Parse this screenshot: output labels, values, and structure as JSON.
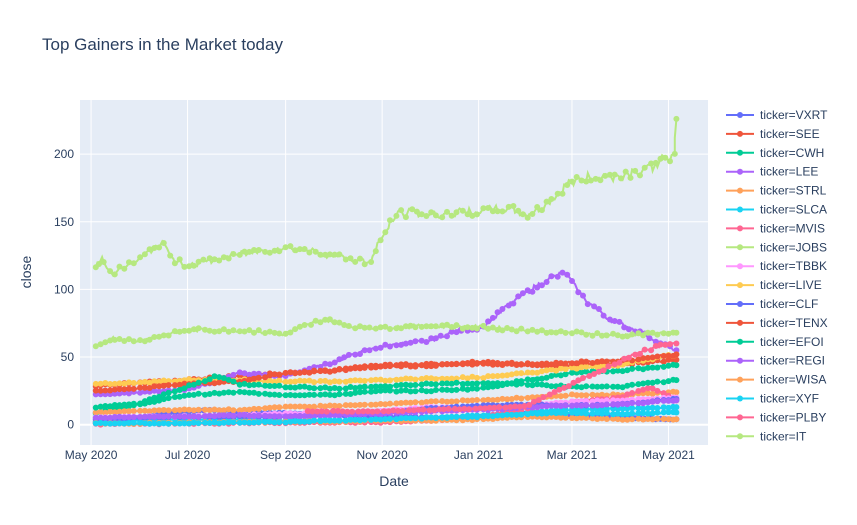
{
  "chart_data": {
    "type": "line",
    "title": "Top Gainers in the Market today",
    "xlabel": "Date",
    "ylabel": "close",
    "x_ticks": [
      "May 2020",
      "Jul 2020",
      "Sep 2020",
      "Nov 2020",
      "Jan 2021",
      "Mar 2021",
      "May 2021"
    ],
    "y_ticks": [
      0,
      50,
      100,
      150,
      200
    ],
    "xlim": [
      "2020-04-24",
      "2021-05-26"
    ],
    "ylim": [
      -15,
      240
    ],
    "grid": true,
    "background": "#E5ECF6",
    "legend_position": "right",
    "markers": true,
    "series": [
      {
        "name": "ticker=VXRT",
        "color": "#636EFA",
        "points": [
          [
            "2020-05-04",
            1.5
          ],
          [
            "2020-06-01",
            5
          ],
          [
            "2020-06-20",
            9
          ],
          [
            "2020-07-15",
            11
          ],
          [
            "2020-08-10",
            9
          ],
          [
            "2020-09-15",
            8
          ],
          [
            "2020-10-15",
            7
          ],
          [
            "2020-11-15",
            6
          ],
          [
            "2020-12-15",
            5
          ],
          [
            "2021-01-15",
            7
          ],
          [
            "2021-02-10",
            9
          ],
          [
            "2021-03-05",
            7
          ],
          [
            "2021-04-01",
            5
          ],
          [
            "2021-05-06",
            4
          ]
        ]
      },
      {
        "name": "ticker=SEE",
        "color": "#EF553B",
        "points": [
          [
            "2020-05-04",
            29
          ],
          [
            "2020-06-01",
            31
          ],
          [
            "2020-07-01",
            33
          ],
          [
            "2020-08-03",
            36
          ],
          [
            "2020-09-01",
            38
          ],
          [
            "2020-10-01",
            40
          ],
          [
            "2020-11-02",
            44
          ],
          [
            "2020-12-01",
            45
          ],
          [
            "2021-01-04",
            46
          ],
          [
            "2021-02-01",
            45
          ],
          [
            "2021-03-01",
            44
          ],
          [
            "2021-04-01",
            45
          ],
          [
            "2021-05-06",
            48
          ]
        ]
      },
      {
        "name": "ticker=CWH",
        "color": "#00CC96",
        "points": [
          [
            "2020-05-04",
            9
          ],
          [
            "2020-06-01",
            15
          ],
          [
            "2020-07-01",
            22
          ],
          [
            "2020-08-03",
            24
          ],
          [
            "2020-09-01",
            22
          ],
          [
            "2020-10-01",
            22
          ],
          [
            "2020-11-02",
            25
          ],
          [
            "2020-12-01",
            25
          ],
          [
            "2021-01-04",
            27
          ],
          [
            "2021-02-01",
            33
          ],
          [
            "2021-03-01",
            38
          ],
          [
            "2021-04-01",
            40
          ],
          [
            "2021-05-06",
            44
          ]
        ]
      },
      {
        "name": "ticker=LEE",
        "color": "#AB63FA",
        "points": [
          [
            "2020-05-04",
            22
          ],
          [
            "2020-06-01",
            24
          ],
          [
            "2020-07-01",
            26
          ],
          [
            "2020-08-03",
            38
          ],
          [
            "2020-09-01",
            36
          ],
          [
            "2020-10-01",
            46
          ],
          [
            "2020-10-15",
            52
          ],
          [
            "2020-11-02",
            58
          ],
          [
            "2020-12-01",
            62
          ],
          [
            "2020-12-20",
            70
          ],
          [
            "2021-01-04",
            72
          ],
          [
            "2021-01-20",
            88
          ],
          [
            "2021-02-01",
            98
          ],
          [
            "2021-02-15",
            108
          ],
          [
            "2021-02-25",
            112
          ],
          [
            "2021-03-10",
            92
          ],
          [
            "2021-03-25",
            78
          ],
          [
            "2021-04-10",
            70
          ],
          [
            "2021-05-06",
            55
          ]
        ]
      },
      {
        "name": "ticker=STRL",
        "color": "#FFA15A",
        "points": [
          [
            "2020-05-04",
            9
          ],
          [
            "2020-06-01",
            10
          ],
          [
            "2020-07-01",
            11
          ],
          [
            "2020-08-03",
            11
          ],
          [
            "2020-09-01",
            13
          ],
          [
            "2020-10-01",
            14
          ],
          [
            "2020-11-02",
            15
          ],
          [
            "2020-12-01",
            17
          ],
          [
            "2021-01-04",
            18
          ],
          [
            "2021-02-01",
            20
          ],
          [
            "2021-03-01",
            22
          ],
          [
            "2021-04-01",
            22
          ],
          [
            "2021-05-06",
            24
          ]
        ]
      },
      {
        "name": "ticker=SLCA",
        "color": "#19D3F3",
        "points": [
          [
            "2020-05-04",
            2
          ],
          [
            "2020-06-01",
            3
          ],
          [
            "2020-07-01",
            4
          ],
          [
            "2020-08-03",
            4
          ],
          [
            "2020-09-01",
            3
          ],
          [
            "2020-10-01",
            3
          ],
          [
            "2020-11-02",
            4
          ],
          [
            "2020-12-01",
            5
          ],
          [
            "2021-01-04",
            7
          ],
          [
            "2021-02-01",
            9
          ],
          [
            "2021-03-01",
            11
          ],
          [
            "2021-04-01",
            12
          ],
          [
            "2021-05-06",
            13
          ]
        ]
      },
      {
        "name": "ticker=MVIS",
        "color": "#FF6692",
        "points": [
          [
            "2020-05-04",
            0.4
          ],
          [
            "2020-06-01",
            0.6
          ],
          [
            "2020-07-01",
            0.8
          ],
          [
            "2020-08-03",
            1.2
          ],
          [
            "2020-09-01",
            1.5
          ],
          [
            "2020-10-01",
            1.6
          ],
          [
            "2020-11-02",
            1.8
          ],
          [
            "2020-12-01",
            3
          ],
          [
            "2021-01-04",
            6
          ],
          [
            "2021-02-01",
            12
          ],
          [
            "2021-03-01",
            17
          ],
          [
            "2021-04-01",
            20
          ],
          [
            "2021-04-20",
            28
          ],
          [
            "2021-05-06",
            18
          ]
        ]
      },
      {
        "name": "ticker=JOBS",
        "color": "#B6E880",
        "points": [
          [
            "2020-05-04",
            57
          ],
          [
            "2020-05-15",
            64
          ],
          [
            "2020-06-01",
            62
          ],
          [
            "2020-07-01",
            70
          ],
          [
            "2020-08-03",
            70
          ],
          [
            "2020-09-01",
            67
          ],
          [
            "2020-09-25",
            78
          ],
          [
            "2020-10-15",
            72
          ],
          [
            "2020-11-02",
            72
          ],
          [
            "2020-12-01",
            73
          ],
          [
            "2021-01-04",
            72
          ],
          [
            "2021-02-01",
            70
          ],
          [
            "2021-03-01",
            68
          ],
          [
            "2021-04-01",
            66
          ],
          [
            "2021-05-06",
            68
          ]
        ]
      },
      {
        "name": "ticker=TBBK",
        "color": "#FF97FF",
        "points": [
          [
            "2020-05-04",
            5
          ],
          [
            "2020-06-01",
            6
          ],
          [
            "2020-07-01",
            6
          ],
          [
            "2020-08-03",
            7
          ],
          [
            "2020-09-01",
            8
          ],
          [
            "2020-10-01",
            8
          ],
          [
            "2020-11-02",
            10
          ],
          [
            "2020-12-01",
            13
          ],
          [
            "2021-01-04",
            13
          ],
          [
            "2021-02-01",
            14
          ],
          [
            "2021-03-01",
            17
          ],
          [
            "2021-04-01",
            18
          ],
          [
            "2021-05-06",
            20
          ]
        ]
      },
      {
        "name": "ticker=LIVE",
        "color": "#FECB52",
        "points": [
          [
            "2020-05-04",
            30
          ],
          [
            "2020-06-01",
            31
          ],
          [
            "2020-07-01",
            33
          ],
          [
            "2020-08-03",
            33
          ],
          [
            "2020-09-01",
            32
          ],
          [
            "2020-10-01",
            32
          ],
          [
            "2020-11-02",
            33
          ],
          [
            "2020-12-01",
            34
          ],
          [
            "2021-01-04",
            35
          ],
          [
            "2021-02-01",
            38
          ],
          [
            "2021-03-01",
            42
          ],
          [
            "2021-04-01",
            44
          ],
          [
            "2021-05-06",
            52
          ]
        ]
      },
      {
        "name": "ticker=CLF",
        "color": "#636EFA",
        "points": [
          [
            "2020-05-04",
            4
          ],
          [
            "2020-06-01",
            5
          ],
          [
            "2020-07-01",
            6
          ],
          [
            "2020-08-03",
            6
          ],
          [
            "2020-09-01",
            6
          ],
          [
            "2020-10-01",
            7
          ],
          [
            "2020-11-02",
            8
          ],
          [
            "2020-12-01",
            12
          ],
          [
            "2021-01-04",
            14
          ],
          [
            "2021-02-01",
            15
          ],
          [
            "2021-03-01",
            14
          ],
          [
            "2021-04-01",
            15
          ],
          [
            "2021-05-06",
            19
          ]
        ]
      },
      {
        "name": "ticker=TENX",
        "color": "#EF553B",
        "points": [
          [
            "2020-05-04",
            25
          ],
          [
            "2020-06-01",
            27
          ],
          [
            "2020-07-01",
            30
          ],
          [
            "2020-08-03",
            32
          ],
          [
            "2020-09-01",
            38
          ],
          [
            "2020-10-01",
            40
          ],
          [
            "2020-11-02",
            43
          ],
          [
            "2020-12-01",
            44
          ],
          [
            "2021-01-04",
            45
          ],
          [
            "2021-02-01",
            44
          ],
          [
            "2021-03-01",
            46
          ],
          [
            "2021-04-01",
            47
          ],
          [
            "2021-05-06",
            52
          ]
        ]
      },
      {
        "name": "ticker=EFOI",
        "color": "#00CC96",
        "points": [
          [
            "2020-05-04",
            13
          ],
          [
            "2020-06-01",
            16
          ],
          [
            "2020-07-01",
            28
          ],
          [
            "2020-07-20",
            36
          ],
          [
            "2020-08-03",
            30
          ],
          [
            "2020-09-01",
            28
          ],
          [
            "2020-10-01",
            27
          ],
          [
            "2020-11-02",
            28
          ],
          [
            "2020-12-01",
            30
          ],
          [
            "2021-01-04",
            31
          ],
          [
            "2021-02-01",
            30
          ],
          [
            "2021-03-01",
            28
          ],
          [
            "2021-04-01",
            28
          ],
          [
            "2021-05-06",
            33
          ]
        ]
      },
      {
        "name": "ticker=REGI",
        "color": "#AB63FA",
        "points": [
          [
            "2020-05-04",
            5
          ],
          [
            "2020-06-01",
            6
          ],
          [
            "2020-07-01",
            6
          ],
          [
            "2020-08-03",
            7
          ],
          [
            "2020-09-01",
            6
          ],
          [
            "2020-10-01",
            7
          ],
          [
            "2020-11-02",
            8
          ],
          [
            "2020-12-01",
            10
          ],
          [
            "2021-01-04",
            11
          ],
          [
            "2021-02-01",
            13
          ],
          [
            "2021-03-01",
            14
          ],
          [
            "2021-04-01",
            15
          ],
          [
            "2021-05-06",
            18
          ]
        ]
      },
      {
        "name": "ticker=WISA",
        "color": "#FFA15A",
        "points": [
          [
            "2020-05-04",
            1
          ],
          [
            "2020-06-01",
            1
          ],
          [
            "2020-07-01",
            1.5
          ],
          [
            "2020-08-03",
            2
          ],
          [
            "2020-09-01",
            2
          ],
          [
            "2020-10-01",
            2.5
          ],
          [
            "2020-11-02",
            3
          ],
          [
            "2020-12-01",
            3
          ],
          [
            "2021-01-04",
            4
          ],
          [
            "2021-02-01",
            6
          ],
          [
            "2021-03-01",
            5
          ],
          [
            "2021-04-01",
            4
          ],
          [
            "2021-05-06",
            4
          ]
        ]
      },
      {
        "name": "ticker=XYF",
        "color": "#19D3F3",
        "points": [
          [
            "2020-05-04",
            1
          ],
          [
            "2020-06-01",
            1
          ],
          [
            "2020-07-01",
            1
          ],
          [
            "2020-08-03",
            1.5
          ],
          [
            "2020-09-01",
            2
          ],
          [
            "2020-10-01",
            3
          ],
          [
            "2020-11-02",
            4
          ],
          [
            "2020-12-01",
            5
          ],
          [
            "2021-01-04",
            6
          ],
          [
            "2021-02-01",
            8
          ],
          [
            "2021-03-01",
            9
          ],
          [
            "2021-04-01",
            8
          ],
          [
            "2021-05-06",
            9
          ]
        ]
      },
      {
        "name": "ticker=PLBY",
        "color": "#FF6692",
        "points": [
          [
            "2020-09-15",
            10
          ],
          [
            "2020-10-01",
            10
          ],
          [
            "2020-11-02",
            10
          ],
          [
            "2020-12-01",
            11
          ],
          [
            "2021-01-04",
            12
          ],
          [
            "2021-02-01",
            14
          ],
          [
            "2021-02-15",
            22
          ],
          [
            "2021-03-01",
            30
          ],
          [
            "2021-03-20",
            40
          ],
          [
            "2021-04-10",
            52
          ],
          [
            "2021-04-25",
            58
          ],
          [
            "2021-05-06",
            60
          ]
        ]
      },
      {
        "name": "ticker=IT",
        "color": "#B6E880",
        "points": [
          [
            "2020-05-04",
            116
          ],
          [
            "2020-05-08",
            123
          ],
          [
            "2020-05-15",
            112
          ],
          [
            "2020-06-01",
            122
          ],
          [
            "2020-06-15",
            135
          ],
          [
            "2020-06-22",
            122
          ],
          [
            "2020-07-01",
            118
          ],
          [
            "2020-07-15",
            121
          ],
          [
            "2020-08-03",
            126
          ],
          [
            "2020-09-01",
            131
          ],
          [
            "2020-09-20",
            128
          ],
          [
            "2020-10-01",
            125
          ],
          [
            "2020-10-25",
            120
          ],
          [
            "2020-11-02",
            140
          ],
          [
            "2020-11-10",
            155
          ],
          [
            "2020-11-20",
            157
          ],
          [
            "2020-12-01",
            155
          ],
          [
            "2021-01-04",
            158
          ],
          [
            "2021-01-20",
            160
          ],
          [
            "2021-02-01",
            155
          ],
          [
            "2021-02-10",
            160
          ],
          [
            "2021-02-20",
            170
          ],
          [
            "2021-03-01",
            180
          ],
          [
            "2021-03-15",
            183
          ],
          [
            "2021-04-01",
            184
          ],
          [
            "2021-04-20",
            190
          ],
          [
            "2021-05-01",
            198
          ],
          [
            "2021-05-05",
            198
          ],
          [
            "2021-05-06",
            226
          ]
        ]
      }
    ]
  }
}
